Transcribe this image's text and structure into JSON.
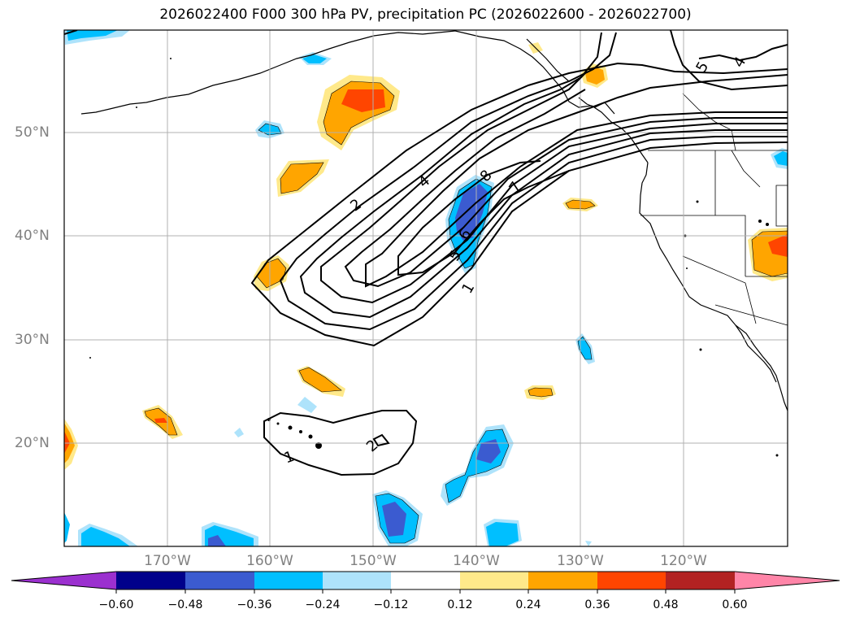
{
  "title": "2026022400 F000 300 hPa PV, precipitation PC (2026022600 - 2026022700)",
  "lat_labels": [
    "50°N",
    "40°N",
    "30°N",
    "20°N"
  ],
  "lon_labels": [
    "170°W",
    "160°W",
    "150°W",
    "140°W",
    "130°W",
    "120°W"
  ],
  "colorbar": {
    "ticks": [
      "−0.60",
      "−0.48",
      "−0.36",
      "−0.24",
      "−0.12",
      "0.12",
      "0.24",
      "0.36",
      "0.48",
      "0.60"
    ],
    "colors": [
      "#9b30cf",
      "#00008b",
      "#3b5bd0",
      "#00bfff",
      "#aee3fb",
      "#ffffff",
      "#ffe98a",
      "#ffa500",
      "#ff4500",
      "#b22222",
      "#ff85a8"
    ]
  },
  "contour_labels": [
    "1",
    "2",
    "4",
    "5",
    "6",
    "7",
    "8",
    "4",
    "5",
    "1",
    "2"
  ]
}
